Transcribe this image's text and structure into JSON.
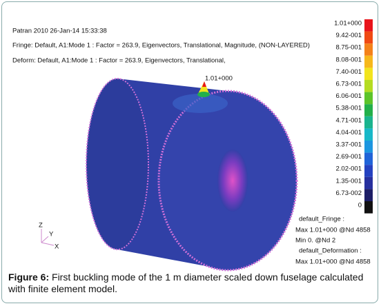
{
  "header": {
    "line1": "Patran 2010 26-Jan-14 15:33:38",
    "line2": "Fringe: Default, A1:Mode 1 : Factor = 263.9, Eigenvectors, Translational, Magnitude, (NON-LAYERED)",
    "line3": "Deform: Default, A1:Mode 1 : Factor = 263.9, Eigenvectors, Translational,"
  },
  "peak_label": "1.01+000",
  "colorbar": [
    {
      "label": "1.01+000",
      "color": "#e8141b"
    },
    {
      "label": "9.42-001",
      "color": "#f04a14"
    },
    {
      "label": "8.75-001",
      "color": "#f4821a"
    },
    {
      "label": "8.08-001",
      "color": "#f6b81c"
    },
    {
      "label": "7.40-001",
      "color": "#f2e41e"
    },
    {
      "label": "6.73-001",
      "color": "#b4dc22"
    },
    {
      "label": "6.06-001",
      "color": "#5cc42a"
    },
    {
      "label": "5.38-001",
      "color": "#22b04a"
    },
    {
      "label": "4.71-001",
      "color": "#1ab48e"
    },
    {
      "label": "4.04-001",
      "color": "#18b8c8"
    },
    {
      "label": "3.37-001",
      "color": "#1c96e0"
    },
    {
      "label": "2.69-001",
      "color": "#2064d8"
    },
    {
      "label": "2.02-001",
      "color": "#2442c0"
    },
    {
      "label": "1.35-001",
      "color": "#26309e"
    },
    {
      "label": "6.73-002",
      "color": "#1c1e66"
    },
    {
      "label": "0",
      "color": "#111111"
    }
  ],
  "info": [
    "default_Fringe :",
    "Max 1.01+000 @Nd 4858",
    "Min 0. @Nd 2",
    "default_Deformation :",
    "Max 1.01+000 @Nd 4858"
  ],
  "axes": {
    "z": "Z",
    "y": "Y",
    "x": "X"
  },
  "caption": {
    "label": "Figure 6:",
    "text": " First buckling mode of the 1 m diameter scaled down fuselage calculated with finite element model."
  }
}
